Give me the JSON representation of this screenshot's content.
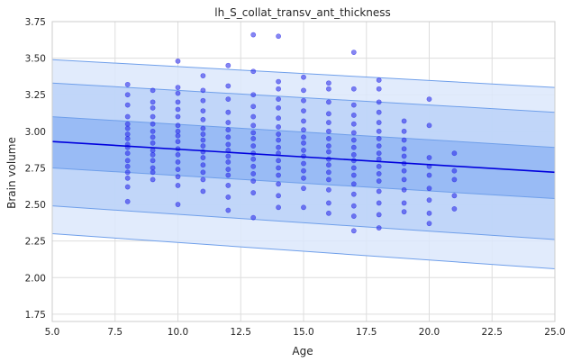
{
  "chart_data": {
    "type": "scatter",
    "title": "lh_S_collat_transv_ant_thickness",
    "xlabel": "Age",
    "ylabel": "Brain volume",
    "xlim": [
      5.0,
      25.0
    ],
    "ylim": [
      1.7,
      3.75
    ],
    "xticks": [
      5.0,
      7.5,
      10.0,
      12.5,
      15.0,
      17.5,
      20.0,
      22.5,
      25.0
    ],
    "xtick_labels": [
      "5.0",
      "7.5",
      "10.0",
      "12.5",
      "15.0",
      "17.5",
      "20.0",
      "22.5",
      "25.0"
    ],
    "yticks": [
      1.75,
      2.0,
      2.25,
      2.5,
      2.75,
      3.0,
      3.25,
      3.5,
      3.75
    ],
    "ytick_labels": [
      "1.75",
      "2.00",
      "2.25",
      "2.50",
      "2.75",
      "3.00",
      "3.25",
      "3.50",
      "3.75"
    ],
    "grid": true,
    "fit_line": {
      "x": [
        5.0,
        25.0
      ],
      "y": [
        2.93,
        2.72
      ],
      "color": "#0000dd"
    },
    "bands": [
      {
        "name": "outer",
        "lower": [
          2.3,
          2.06
        ],
        "upper": [
          3.49,
          3.3
        ],
        "color": "#dce7fb"
      },
      {
        "name": "middle",
        "lower": [
          2.49,
          2.26
        ],
        "upper": [
          3.33,
          3.13
        ],
        "color": "#bbd2f8"
      },
      {
        "name": "inner",
        "lower": [
          2.75,
          2.54
        ],
        "upper": [
          3.1,
          2.89
        ],
        "color": "#92b6f5"
      }
    ],
    "point_color": "#2323e8",
    "points": [
      {
        "x": 8,
        "y": 3.32
      },
      {
        "x": 8,
        "y": 3.25
      },
      {
        "x": 8,
        "y": 3.18
      },
      {
        "x": 8,
        "y": 3.1
      },
      {
        "x": 8,
        "y": 3.05
      },
      {
        "x": 8,
        "y": 3.02
      },
      {
        "x": 8,
        "y": 2.98
      },
      {
        "x": 8,
        "y": 2.95
      },
      {
        "x": 8,
        "y": 2.91
      },
      {
        "x": 8,
        "y": 2.89
      },
      {
        "x": 8,
        "y": 2.85
      },
      {
        "x": 8,
        "y": 2.8
      },
      {
        "x": 8,
        "y": 2.76
      },
      {
        "x": 8,
        "y": 2.72
      },
      {
        "x": 8,
        "y": 2.68
      },
      {
        "x": 8,
        "y": 2.62
      },
      {
        "x": 8,
        "y": 2.52
      },
      {
        "x": 9,
        "y": 3.28
      },
      {
        "x": 9,
        "y": 3.2
      },
      {
        "x": 9,
        "y": 3.16
      },
      {
        "x": 9,
        "y": 3.1
      },
      {
        "x": 9,
        "y": 3.05
      },
      {
        "x": 9,
        "y": 3.0
      },
      {
        "x": 9,
        "y": 2.96
      },
      {
        "x": 9,
        "y": 2.92
      },
      {
        "x": 9,
        "y": 2.87
      },
      {
        "x": 9,
        "y": 2.84
      },
      {
        "x": 9,
        "y": 2.8
      },
      {
        "x": 9,
        "y": 2.75
      },
      {
        "x": 9,
        "y": 2.72
      },
      {
        "x": 9,
        "y": 2.67
      },
      {
        "x": 10,
        "y": 3.48
      },
      {
        "x": 10,
        "y": 3.3
      },
      {
        "x": 10,
        "y": 3.26
      },
      {
        "x": 10,
        "y": 3.2
      },
      {
        "x": 10,
        "y": 3.15
      },
      {
        "x": 10,
        "y": 3.1
      },
      {
        "x": 10,
        "y": 3.04
      },
      {
        "x": 10,
        "y": 3.0
      },
      {
        "x": 10,
        "y": 2.97
      },
      {
        "x": 10,
        "y": 2.93
      },
      {
        "x": 10,
        "y": 2.88
      },
      {
        "x": 10,
        "y": 2.84
      },
      {
        "x": 10,
        "y": 2.79
      },
      {
        "x": 10,
        "y": 2.74
      },
      {
        "x": 10,
        "y": 2.69
      },
      {
        "x": 10,
        "y": 2.63
      },
      {
        "x": 10,
        "y": 2.5
      },
      {
        "x": 11,
        "y": 3.38
      },
      {
        "x": 11,
        "y": 3.28
      },
      {
        "x": 11,
        "y": 3.21
      },
      {
        "x": 11,
        "y": 3.14
      },
      {
        "x": 11,
        "y": 3.08
      },
      {
        "x": 11,
        "y": 3.02
      },
      {
        "x": 11,
        "y": 2.98
      },
      {
        "x": 11,
        "y": 2.94
      },
      {
        "x": 11,
        "y": 2.9
      },
      {
        "x": 11,
        "y": 2.86
      },
      {
        "x": 11,
        "y": 2.82
      },
      {
        "x": 11,
        "y": 2.77
      },
      {
        "x": 11,
        "y": 2.72
      },
      {
        "x": 11,
        "y": 2.67
      },
      {
        "x": 11,
        "y": 2.59
      },
      {
        "x": 12,
        "y": 3.45
      },
      {
        "x": 12,
        "y": 3.31
      },
      {
        "x": 12,
        "y": 3.22
      },
      {
        "x": 12,
        "y": 3.13
      },
      {
        "x": 12,
        "y": 3.06
      },
      {
        "x": 12,
        "y": 3.01
      },
      {
        "x": 12,
        "y": 2.96
      },
      {
        "x": 12,
        "y": 2.91
      },
      {
        "x": 12,
        "y": 2.87
      },
      {
        "x": 12,
        "y": 2.83
      },
      {
        "x": 12,
        "y": 2.79
      },
      {
        "x": 12,
        "y": 2.74
      },
      {
        "x": 12,
        "y": 2.7
      },
      {
        "x": 12,
        "y": 2.63
      },
      {
        "x": 12,
        "y": 2.55
      },
      {
        "x": 12,
        "y": 2.46
      },
      {
        "x": 13,
        "y": 3.66
      },
      {
        "x": 13,
        "y": 3.41
      },
      {
        "x": 13,
        "y": 3.25
      },
      {
        "x": 13,
        "y": 3.17
      },
      {
        "x": 13,
        "y": 3.1
      },
      {
        "x": 13,
        "y": 3.04
      },
      {
        "x": 13,
        "y": 2.99
      },
      {
        "x": 13,
        "y": 2.95
      },
      {
        "x": 13,
        "y": 2.9
      },
      {
        "x": 13,
        "y": 2.85
      },
      {
        "x": 13,
        "y": 2.81
      },
      {
        "x": 13,
        "y": 2.76
      },
      {
        "x": 13,
        "y": 2.71
      },
      {
        "x": 13,
        "y": 2.66
      },
      {
        "x": 13,
        "y": 2.58
      },
      {
        "x": 13,
        "y": 2.41
      },
      {
        "x": 14,
        "y": 3.65
      },
      {
        "x": 14,
        "y": 3.34
      },
      {
        "x": 14,
        "y": 3.29
      },
      {
        "x": 14,
        "y": 3.22
      },
      {
        "x": 14,
        "y": 3.16
      },
      {
        "x": 14,
        "y": 3.09
      },
      {
        "x": 14,
        "y": 3.03
      },
      {
        "x": 14,
        "y": 2.98
      },
      {
        "x": 14,
        "y": 2.94
      },
      {
        "x": 14,
        "y": 2.89
      },
      {
        "x": 14,
        "y": 2.85
      },
      {
        "x": 14,
        "y": 2.8
      },
      {
        "x": 14,
        "y": 2.75
      },
      {
        "x": 14,
        "y": 2.7
      },
      {
        "x": 14,
        "y": 2.64
      },
      {
        "x": 14,
        "y": 2.56
      },
      {
        "x": 14,
        "y": 2.48
      },
      {
        "x": 15,
        "y": 3.37
      },
      {
        "x": 15,
        "y": 3.28
      },
      {
        "x": 15,
        "y": 3.21
      },
      {
        "x": 15,
        "y": 3.14
      },
      {
        "x": 15,
        "y": 3.07
      },
      {
        "x": 15,
        "y": 3.01
      },
      {
        "x": 15,
        "y": 2.96
      },
      {
        "x": 15,
        "y": 2.92
      },
      {
        "x": 15,
        "y": 2.87
      },
      {
        "x": 15,
        "y": 2.83
      },
      {
        "x": 15,
        "y": 2.78
      },
      {
        "x": 15,
        "y": 2.73
      },
      {
        "x": 15,
        "y": 2.68
      },
      {
        "x": 15,
        "y": 2.61
      },
      {
        "x": 15,
        "y": 2.48
      },
      {
        "x": 16,
        "y": 3.33
      },
      {
        "x": 16,
        "y": 3.29
      },
      {
        "x": 16,
        "y": 3.2
      },
      {
        "x": 16,
        "y": 3.12
      },
      {
        "x": 16,
        "y": 3.06
      },
      {
        "x": 16,
        "y": 3.0
      },
      {
        "x": 16,
        "y": 2.95
      },
      {
        "x": 16,
        "y": 2.9
      },
      {
        "x": 16,
        "y": 2.86
      },
      {
        "x": 16,
        "y": 2.81
      },
      {
        "x": 16,
        "y": 2.77
      },
      {
        "x": 16,
        "y": 2.72
      },
      {
        "x": 16,
        "y": 2.67
      },
      {
        "x": 16,
        "y": 2.6
      },
      {
        "x": 16,
        "y": 2.51
      },
      {
        "x": 16,
        "y": 2.44
      },
      {
        "x": 17,
        "y": 3.54
      },
      {
        "x": 17,
        "y": 3.29
      },
      {
        "x": 17,
        "y": 3.18
      },
      {
        "x": 17,
        "y": 3.11
      },
      {
        "x": 17,
        "y": 3.05
      },
      {
        "x": 17,
        "y": 2.99
      },
      {
        "x": 17,
        "y": 2.94
      },
      {
        "x": 17,
        "y": 2.89
      },
      {
        "x": 17,
        "y": 2.84
      },
      {
        "x": 17,
        "y": 2.8
      },
      {
        "x": 17,
        "y": 2.75
      },
      {
        "x": 17,
        "y": 2.7
      },
      {
        "x": 17,
        "y": 2.64
      },
      {
        "x": 17,
        "y": 2.57
      },
      {
        "x": 17,
        "y": 2.49
      },
      {
        "x": 17,
        "y": 2.42
      },
      {
        "x": 17,
        "y": 2.32
      },
      {
        "x": 18,
        "y": 3.35
      },
      {
        "x": 18,
        "y": 3.29
      },
      {
        "x": 18,
        "y": 3.2
      },
      {
        "x": 18,
        "y": 3.13
      },
      {
        "x": 18,
        "y": 3.06
      },
      {
        "x": 18,
        "y": 3.0
      },
      {
        "x": 18,
        "y": 2.95
      },
      {
        "x": 18,
        "y": 2.9
      },
      {
        "x": 18,
        "y": 2.85
      },
      {
        "x": 18,
        "y": 2.81
      },
      {
        "x": 18,
        "y": 2.76
      },
      {
        "x": 18,
        "y": 2.71
      },
      {
        "x": 18,
        "y": 2.66
      },
      {
        "x": 18,
        "y": 2.59
      },
      {
        "x": 18,
        "y": 2.51
      },
      {
        "x": 18,
        "y": 2.43
      },
      {
        "x": 18,
        "y": 2.34
      },
      {
        "x": 19,
        "y": 3.07
      },
      {
        "x": 19,
        "y": 3.0
      },
      {
        "x": 19,
        "y": 2.94
      },
      {
        "x": 19,
        "y": 2.88
      },
      {
        "x": 19,
        "y": 2.83
      },
      {
        "x": 19,
        "y": 2.78
      },
      {
        "x": 19,
        "y": 2.73
      },
      {
        "x": 19,
        "y": 2.67
      },
      {
        "x": 19,
        "y": 2.6
      },
      {
        "x": 19,
        "y": 2.51
      },
      {
        "x": 19,
        "y": 2.45
      },
      {
        "x": 20,
        "y": 3.22
      },
      {
        "x": 20,
        "y": 3.04
      },
      {
        "x": 20,
        "y": 2.82
      },
      {
        "x": 20,
        "y": 2.76
      },
      {
        "x": 20,
        "y": 2.7
      },
      {
        "x": 20,
        "y": 2.61
      },
      {
        "x": 20,
        "y": 2.53
      },
      {
        "x": 20,
        "y": 2.44
      },
      {
        "x": 20,
        "y": 2.37
      },
      {
        "x": 21,
        "y": 2.85
      },
      {
        "x": 21,
        "y": 2.73
      },
      {
        "x": 21,
        "y": 2.67
      },
      {
        "x": 21,
        "y": 2.56
      },
      {
        "x": 21,
        "y": 2.47
      }
    ]
  }
}
